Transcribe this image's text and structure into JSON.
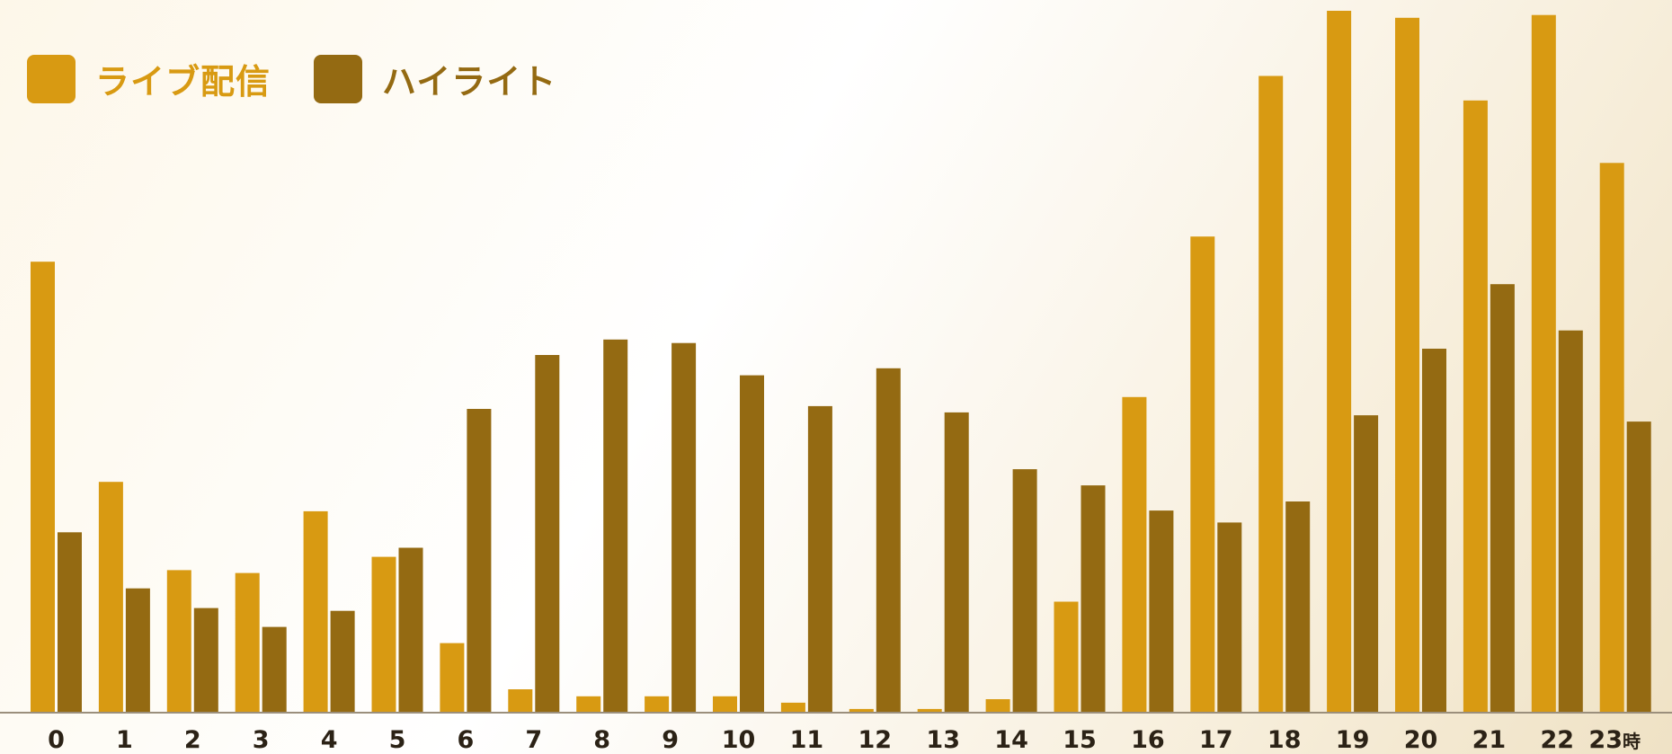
{
  "chart_data": {
    "type": "bar",
    "categories": [
      "0",
      "1",
      "2",
      "3",
      "4",
      "5",
      "6",
      "7",
      "8",
      "9",
      "10",
      "11",
      "12",
      "13",
      "14",
      "15",
      "16",
      "17",
      "18",
      "19",
      "20",
      "21",
      "22",
      "23"
    ],
    "x_unit": "時",
    "series": [
      {
        "name": "ライブ配信",
        "color": "#d89a12",
        "values": [
          64.2,
          32.8,
          20.2,
          19.8,
          28.6,
          22.1,
          9.8,
          3.2,
          2.2,
          2.2,
          2.2,
          1.3,
          0.4,
          0.4,
          1.8,
          15.7,
          44.9,
          67.8,
          90.7,
          100,
          99.0,
          87.2,
          99.4,
          78.3
        ]
      },
      {
        "name": "ハイライト",
        "color": "#946a12",
        "values": [
          25.6,
          17.6,
          14.8,
          12.1,
          14.4,
          23.4,
          43.2,
          50.9,
          53.1,
          52.6,
          48.0,
          43.6,
          49.0,
          42.7,
          34.6,
          32.3,
          28.7,
          27.0,
          30.0,
          42.3,
          51.8,
          61.0,
          54.4,
          41.4
        ]
      }
    ],
    "ylim": [
      0,
      100
    ],
    "grid": false,
    "legend_position": "top-left"
  }
}
